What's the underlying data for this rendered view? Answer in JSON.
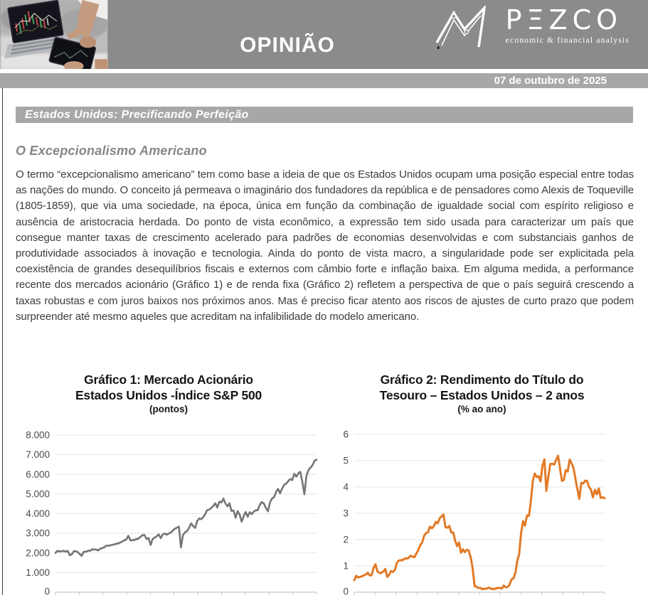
{
  "header": {
    "title": "OPINIÃO",
    "logo": {
      "wordmark": "PEZCO",
      "tagline": "economic & financial analysis"
    }
  },
  "date_bar": {
    "date": "07 de outubro de 2025"
  },
  "headline_bar": {
    "title": "Estados Unidos: Precificando Perfeição"
  },
  "article": {
    "heading": "O Excepcionalismo Americano",
    "paragraph": "O termo “excepcionalismo americano” tem como base a ideia de que os Estados Unidos ocupam uma posição especial entre todas as nações do mundo. O conceito já permeava o imaginário dos fundadores da república e de pensadores como Alexis de Toqueville (1805-1859), que via uma sociedade, na época, única em função da combinação de igualdade social com espírito religioso e ausência de aristocracia herdada. Do ponto de vista econômico, a expressão tem sido usada para caracterizar um país que consegue manter taxas de crescimento acelerado para padrões de economias desenvolvidas e com substanciais ganhos de produtividade associados à inovação e tecnologia. Ainda do ponto de vista macro, a singularidade pode ser explicitada pela coexistência de grandes desequilíbrios fiscais e externos com câmbio forte e inflação baixa. Em alguma medida, a performance recente dos mercados acionário (Gráfico 1) e de renda fixa (Gráfico 2) refletem a perspectiva de que o país seguirá crescendo a taxas robustas e com juros baixos nos próximos anos. Mas é preciso ficar atento aos riscos de ajustes de curto prazo que podem surpreender até mesmo aqueles que acreditam na infalibilidade do modelo americano."
  },
  "colors": {
    "header_gray": "#8b8b8b",
    "bar_gray": "#a7a7a7",
    "sp500_line": "#757575",
    "treasury_line": "#e27a26",
    "gridline": "#e4e4e4",
    "axis": "#c6c6c6"
  },
  "chart_data": [
    {
      "type": "line",
      "title_lines": [
        "Gráfico 1: Mercado Acionário",
        "Estados Unidos -Índice S&P 500"
      ],
      "subtitle": "(pontos)",
      "ylim": [
        0,
        8000
      ],
      "yticks": [
        {
          "v": 8000,
          "label": "8.000"
        },
        {
          "v": 7000,
          "label": "7.000"
        },
        {
          "v": 6000,
          "label": "6.000"
        },
        {
          "v": 5000,
          "label": "5.000"
        },
        {
          "v": 4000,
          "label": "4.000"
        },
        {
          "v": 3000,
          "label": "3.000"
        },
        {
          "v": 2000,
          "label": "2.000"
        },
        {
          "v": 1000,
          "label": "1.000"
        },
        {
          "v": 0,
          "label": "0"
        }
      ],
      "x_axis": {
        "labels_visible": false,
        "monthly_from": "2015-01",
        "monthly_to": "2025-10"
      },
      "grid": true,
      "legend": "none",
      "line_color": "#757575",
      "series": [
        {
          "name": "S&P 500",
          "values": [
            1995,
            2105,
            2068,
            2086,
            2107,
            2063,
            2104,
            1890,
            1920,
            2079,
            2080,
            2044,
            1940,
            1850,
            2060,
            2065,
            2097,
            2099,
            2174,
            2171,
            2168,
            2126,
            2199,
            2239,
            2279,
            2364,
            2363,
            2384,
            2412,
            2423,
            2470,
            2472,
            2519,
            2575,
            2648,
            2674,
            2872,
            2630,
            2641,
            2648,
            2705,
            2718,
            2816,
            2902,
            2914,
            2712,
            2760,
            2400,
            2704,
            2784,
            2834,
            2946,
            2752,
            2942,
            2980,
            2926,
            2977,
            3038,
            3141,
            3231,
            3290,
            3337,
            2280,
            2912,
            3044,
            3100,
            3271,
            3500,
            3363,
            3270,
            3622,
            3756,
            3714,
            3811,
            3973,
            4181,
            4204,
            4298,
            4395,
            4523,
            4308,
            4605,
            4567,
            4766,
            4516,
            4374,
            4530,
            4132,
            4158,
            3785,
            4130,
            3955,
            3586,
            3872,
            4080,
            3840,
            4077,
            3970,
            4109,
            4169,
            4180,
            4450,
            4589,
            4508,
            4288,
            4117,
            4568,
            4770,
            4846,
            5096,
            5254,
            5036,
            5278,
            5460,
            5522,
            5648,
            5762,
            5705,
            6032,
            5882,
            6041,
            6130,
            5612,
            4983,
            5912,
            6205,
            6339,
            6460,
            6688,
            6740
          ]
        }
      ]
    },
    {
      "type": "line",
      "title_lines": [
        "Gráfico 2: Rendimento do Título do",
        "Tesouro – Estados Unidos – 2 anos"
      ],
      "subtitle": "(% ao ano)",
      "ylim": [
        0,
        6
      ],
      "yticks": [
        {
          "v": 6,
          "label": "6"
        },
        {
          "v": 5,
          "label": "5"
        },
        {
          "v": 4,
          "label": "4"
        },
        {
          "v": 3,
          "label": "3"
        },
        {
          "v": 2,
          "label": "2"
        },
        {
          "v": 1,
          "label": "1"
        },
        {
          "v": 0,
          "label": "0"
        }
      ],
      "x_axis": {
        "labels_visible": false,
        "monthly_from": "2015-01",
        "monthly_to": "2025-10"
      },
      "grid": true,
      "legend": "none",
      "line_color": "#e27a26",
      "series": [
        {
          "name": "Treasury 2 anos",
          "values": [
            0.45,
            0.62,
            0.56,
            0.58,
            0.61,
            0.64,
            0.67,
            0.74,
            0.64,
            0.65,
            0.94,
            1.06,
            0.78,
            0.73,
            0.73,
            0.78,
            0.88,
            0.58,
            0.67,
            0.8,
            0.77,
            0.85,
            1.12,
            1.2,
            1.21,
            1.22,
            1.27,
            1.28,
            1.3,
            1.38,
            1.35,
            1.33,
            1.47,
            1.6,
            1.78,
            1.89,
            2.14,
            2.25,
            2.27,
            2.49,
            2.43,
            2.52,
            2.67,
            2.62,
            2.81,
            2.87,
            2.95,
            2.48,
            2.45,
            2.52,
            2.27,
            2.27,
            1.95,
            1.75,
            1.89,
            1.5,
            1.63,
            1.52,
            1.61,
            1.58,
            1.33,
            0.91,
            0.23,
            0.2,
            0.16,
            0.16,
            0.11,
            0.13,
            0.13,
            0.16,
            0.15,
            0.13,
            0.11,
            0.14,
            0.16,
            0.16,
            0.14,
            0.25,
            0.19,
            0.2,
            0.28,
            0.48,
            0.52,
            0.73,
            1.18,
            1.44,
            2.28,
            2.7,
            2.53,
            2.92,
            2.9,
            3.45,
            4.22,
            4.51,
            4.38,
            4.41,
            4.21,
            4.81,
            5.05,
            3.85,
            4.4,
            4.87,
            4.88,
            4.85,
            5.03,
            5.19,
            4.73,
            4.23,
            4.27,
            4.64,
            4.59,
            5.04,
            4.89,
            4.71,
            4.29,
            3.91,
            3.55,
            4.16,
            4.13,
            4.24,
            4.22,
            3.99,
            3.89,
            3.6,
            3.89,
            3.72,
            3.94,
            3.59,
            3.6,
            3.57
          ]
        }
      ]
    }
  ]
}
